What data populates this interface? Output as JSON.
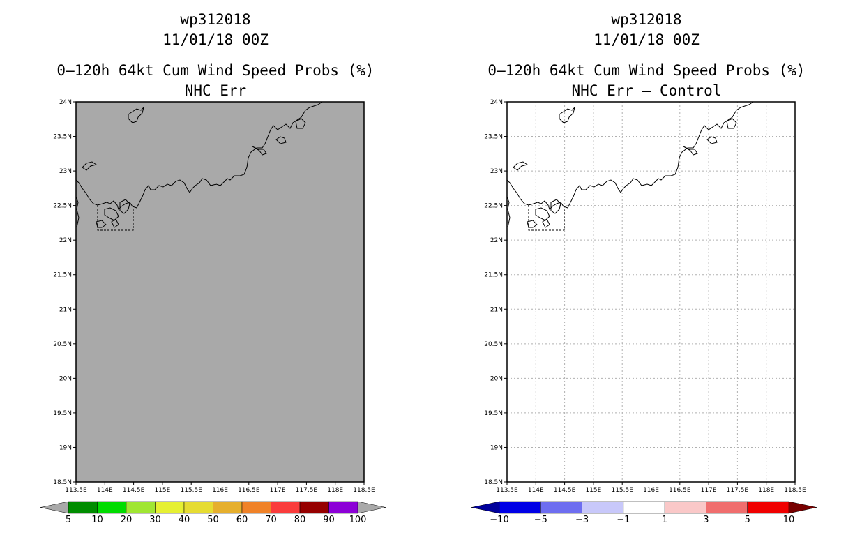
{
  "panels": [
    {
      "title_line1": "wp312018",
      "title_line2": "11/01/18 00Z",
      "title_line3": "0–120h 64kt Cum Wind Speed Probs (%)",
      "title_line4": "NHC Err",
      "fill_color": "#a9a9a9",
      "show_grid": false,
      "colorbar": {
        "colors": [
          "#008c00",
          "#00dc00",
          "#a0e632",
          "#e6f032",
          "#e6dc32",
          "#e6af2d",
          "#f08228",
          "#fa3c3c",
          "#960000",
          "#8c00d7"
        ],
        "left_triangle": "#a9a9a9",
        "right_triangle": "#a9a9a9",
        "labels": [
          "5",
          "10",
          "20",
          "30",
          "40",
          "50",
          "60",
          "70",
          "80",
          "90",
          "100"
        ]
      }
    },
    {
      "title_line1": "wp312018",
      "title_line2": "11/01/18 00Z",
      "title_line3": "0–120h 64kt Cum Wind Speed Probs (%)",
      "title_line4": "NHC Err – Control",
      "fill_color": "#ffffff",
      "show_grid": true,
      "colorbar": {
        "colors": [
          "#0000e6",
          "#6e6ef0",
          "#c8c8fa",
          "#ffffff",
          "#fac8c8",
          "#f06e6e",
          "#f00000"
        ],
        "left_triangle": "#00009b",
        "right_triangle": "#780000",
        "labels": [
          "−10",
          "−5",
          "−3",
          "−1",
          "1",
          "3",
          "5",
          "10"
        ]
      }
    }
  ],
  "axes": {
    "x_ticks": [
      "113.5E",
      "114E",
      "114.5E",
      "115E",
      "115.5E",
      "116E",
      "116.5E",
      "117E",
      "117.5E",
      "118E",
      "118.5E"
    ],
    "y_ticks": [
      "24N",
      "23.5N",
      "23N",
      "22.5N",
      "22N",
      "21.5N",
      "21N",
      "20.5N",
      "20N",
      "19.5N",
      "19N",
      "18.5N"
    ]
  }
}
